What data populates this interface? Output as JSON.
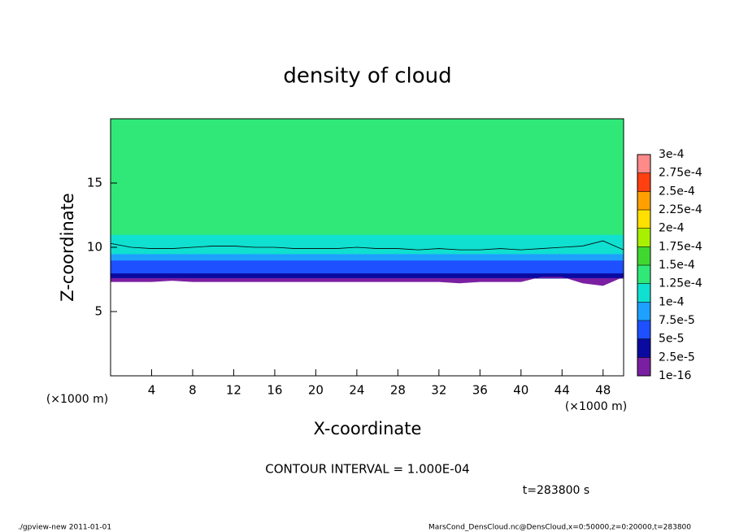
{
  "chart_data": {
    "type": "contour",
    "title": "density of cloud",
    "xlabel": "X-coordinate",
    "ylabel": "Z-coordinate",
    "x_unit_label": "(×1000 m)",
    "y_unit_label": "(×1000 m)",
    "xlim": [
      0,
      50
    ],
    "xticks": [
      4,
      8,
      12,
      16,
      20,
      24,
      28,
      32,
      36,
      40,
      44,
      48
    ],
    "ylim": [
      0,
      20
    ],
    "yticks": [
      5,
      10,
      15
    ],
    "field": {
      "z_bins": [
        7.6,
        8,
        8.5,
        9,
        9.5,
        10,
        11,
        20
      ],
      "values": [
        3e-05,
        6e-05,
        7e-05,
        9e-05,
        0.00011,
        0.00012,
        0.000135
      ]
    },
    "x": [
      0,
      2,
      4,
      6,
      8,
      10,
      12,
      14,
      16,
      18,
      20,
      22,
      24,
      26,
      28,
      30,
      32,
      34,
      36,
      38,
      40,
      42,
      44,
      46,
      48,
      50
    ],
    "cloud_base": [
      7.3,
      7.3,
      7.3,
      7.4,
      7.3,
      7.3,
      7.3,
      7.3,
      7.3,
      7.3,
      7.3,
      7.3,
      7.3,
      7.3,
      7.3,
      7.3,
      7.3,
      7.2,
      7.3,
      7.3,
      7.3,
      7.7,
      7.7,
      7.2,
      7.0,
      7.7
    ],
    "contour_line": [
      10.3,
      10.0,
      9.9,
      9.9,
      10.0,
      10.1,
      10.1,
      10.0,
      10.0,
      9.9,
      9.9,
      9.9,
      10.0,
      9.9,
      9.9,
      9.8,
      9.9,
      9.8,
      9.8,
      9.9,
      9.8,
      9.9,
      10.0,
      10.1,
      10.5,
      9.8
    ],
    "colorbar": {
      "levels": [
        {
          "value": 1e-16,
          "label": "1e-16"
        },
        {
          "value": 2.5e-05,
          "label": "2.5e-5"
        },
        {
          "value": 5e-05,
          "label": "5e-5"
        },
        {
          "value": 7.5e-05,
          "label": "7.5e-5"
        },
        {
          "value": 0.0001,
          "label": "1e-4"
        },
        {
          "value": 0.000125,
          "label": "1.25e-4"
        },
        {
          "value": 0.00015,
          "label": "1.5e-4"
        },
        {
          "value": 0.000175,
          "label": "1.75e-4"
        },
        {
          "value": 0.0002,
          "label": "2e-4"
        },
        {
          "value": 0.000225,
          "label": "2.25e-4"
        },
        {
          "value": 0.00025,
          "label": "2.5e-4"
        },
        {
          "value": 0.000275,
          "label": "2.75e-4"
        },
        {
          "value": 0.0003,
          "label": "3e-4"
        }
      ],
      "colors": [
        "#7b1fa2",
        "#0a0aa0",
        "#1e50ff",
        "#1ea0ff",
        "#10e0d0",
        "#30e878",
        "#40d830",
        "#a8f000",
        "#ffe000",
        "#ffa000",
        "#ff4010",
        "#ff8a8a"
      ]
    },
    "contour_interval": "CONTOUR INTERVAL = 1.000E-04",
    "time_label": "t=283800 s",
    "footer_left": "./gpview-new   2011-01-01",
    "footer_right": "MarsCond_DensCloud.nc@DensCloud,x=0:50000,z=0:20000,t=283800"
  }
}
